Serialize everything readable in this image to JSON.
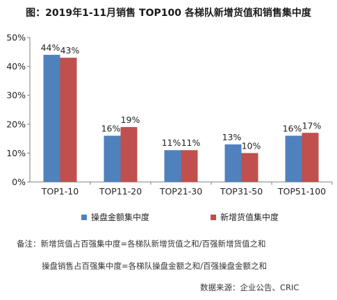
{
  "title": "图：2019年1-11月销售 TOP100 各梯队新增货值和销售集中度",
  "chart_data": {
    "type": "bar",
    "categories": [
      "TOP1-10",
      "TOP11-20",
      "TOP21-30",
      "TOP31-50",
      "TOP51-100"
    ],
    "series": [
      {
        "name": "操盘金额集中度",
        "values": [
          44,
          16,
          11,
          13,
          16
        ],
        "labels": [
          "44%",
          "16%",
          "11%",
          "13%",
          "16%"
        ],
        "color": "#4f81bd"
      },
      {
        "name": "新增货值集中度",
        "values": [
          43,
          19,
          11,
          10,
          17
        ],
        "labels": [
          "43%",
          "19%",
          "11%",
          "10%",
          "17%"
        ],
        "color": "#c0504d"
      }
    ],
    "ylim": [
      0,
      50
    ],
    "yticks": [
      "0%",
      "10%",
      "20%",
      "30%",
      "40%",
      "50%"
    ],
    "xlabel": "",
    "ylabel": "",
    "grid": false,
    "legend": "bottom"
  },
  "notes": {
    "line1": "备注：新增货值占百强集中度=各梯队新增货值之和/百强新增货值之和",
    "line2": "操盘销售占百强集中度=各梯队操盘金额之和/百强操盘金额之和",
    "source": "数据来源：企业公告、CRIC"
  }
}
